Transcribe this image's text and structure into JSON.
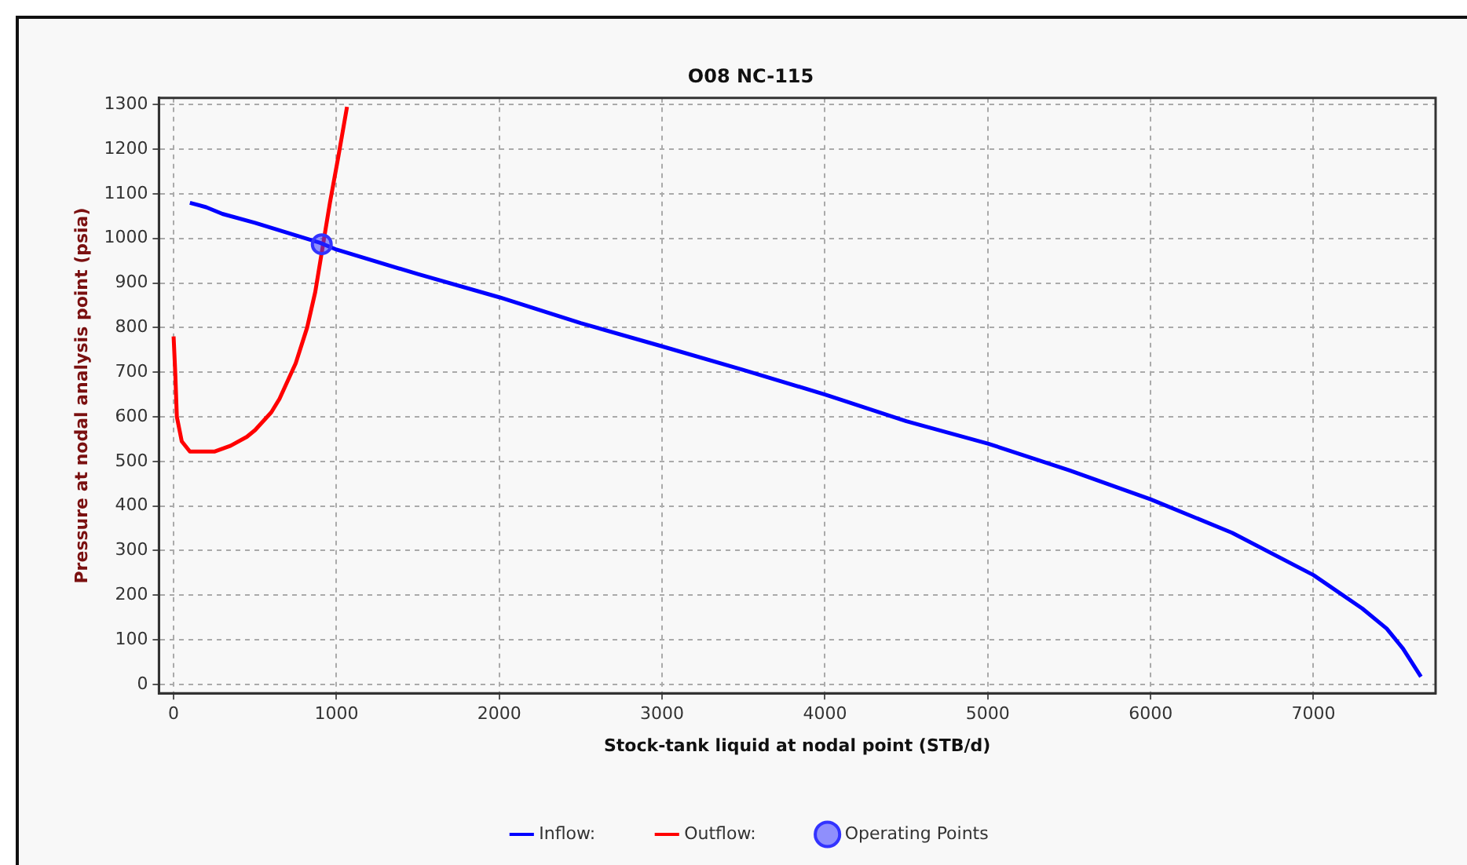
{
  "chart_data": {
    "type": "line",
    "title": "O08 NC-115",
    "xlabel": "Stock-tank liquid at nodal point (STB/d)",
    "ylabel": "Pressure at nodal analysis point (psia)",
    "xlim": [
      -90,
      7750
    ],
    "ylim": [
      -20,
      1315
    ],
    "xticks": [
      0,
      1000,
      2000,
      3000,
      4000,
      5000,
      6000,
      7000
    ],
    "yticks": [
      0,
      100,
      200,
      300,
      400,
      500,
      600,
      700,
      800,
      900,
      1000,
      1100,
      1200,
      1300
    ],
    "grid": true,
    "legend": "bottom",
    "marker": "none",
    "line_style": "solid",
    "series": [
      {
        "name": "Inflow:",
        "type": "line",
        "color": "#0000ff",
        "x": [
          100,
          200,
          300,
          500,
          900,
          1000,
          1500,
          2000,
          2500,
          3000,
          3500,
          4000,
          4500,
          5000,
          5500,
          6000,
          6500,
          7000,
          7300,
          7450,
          7550,
          7660
        ],
        "values": [
          1080,
          1070,
          1055,
          1035,
          990,
          975,
          920,
          868,
          810,
          758,
          705,
          650,
          590,
          540,
          480,
          415,
          340,
          245,
          170,
          125,
          80,
          17
        ]
      },
      {
        "name": "Outflow:",
        "type": "line",
        "color": "#ff0000",
        "x": [
          0,
          10,
          20,
          50,
          100,
          250,
          350,
          450,
          500,
          600,
          650,
          750,
          820,
          870,
          960,
          1010,
          1065
        ],
        "values": [
          780,
          700,
          600,
          545,
          522,
          522,
          535,
          555,
          570,
          610,
          640,
          720,
          800,
          880,
          1080,
          1180,
          1295
        ]
      },
      {
        "name": "Operating Points",
        "type": "scatter",
        "marker": "circle",
        "color": "#3333ff",
        "x": [
          910
        ],
        "values": [
          987
        ]
      }
    ]
  }
}
